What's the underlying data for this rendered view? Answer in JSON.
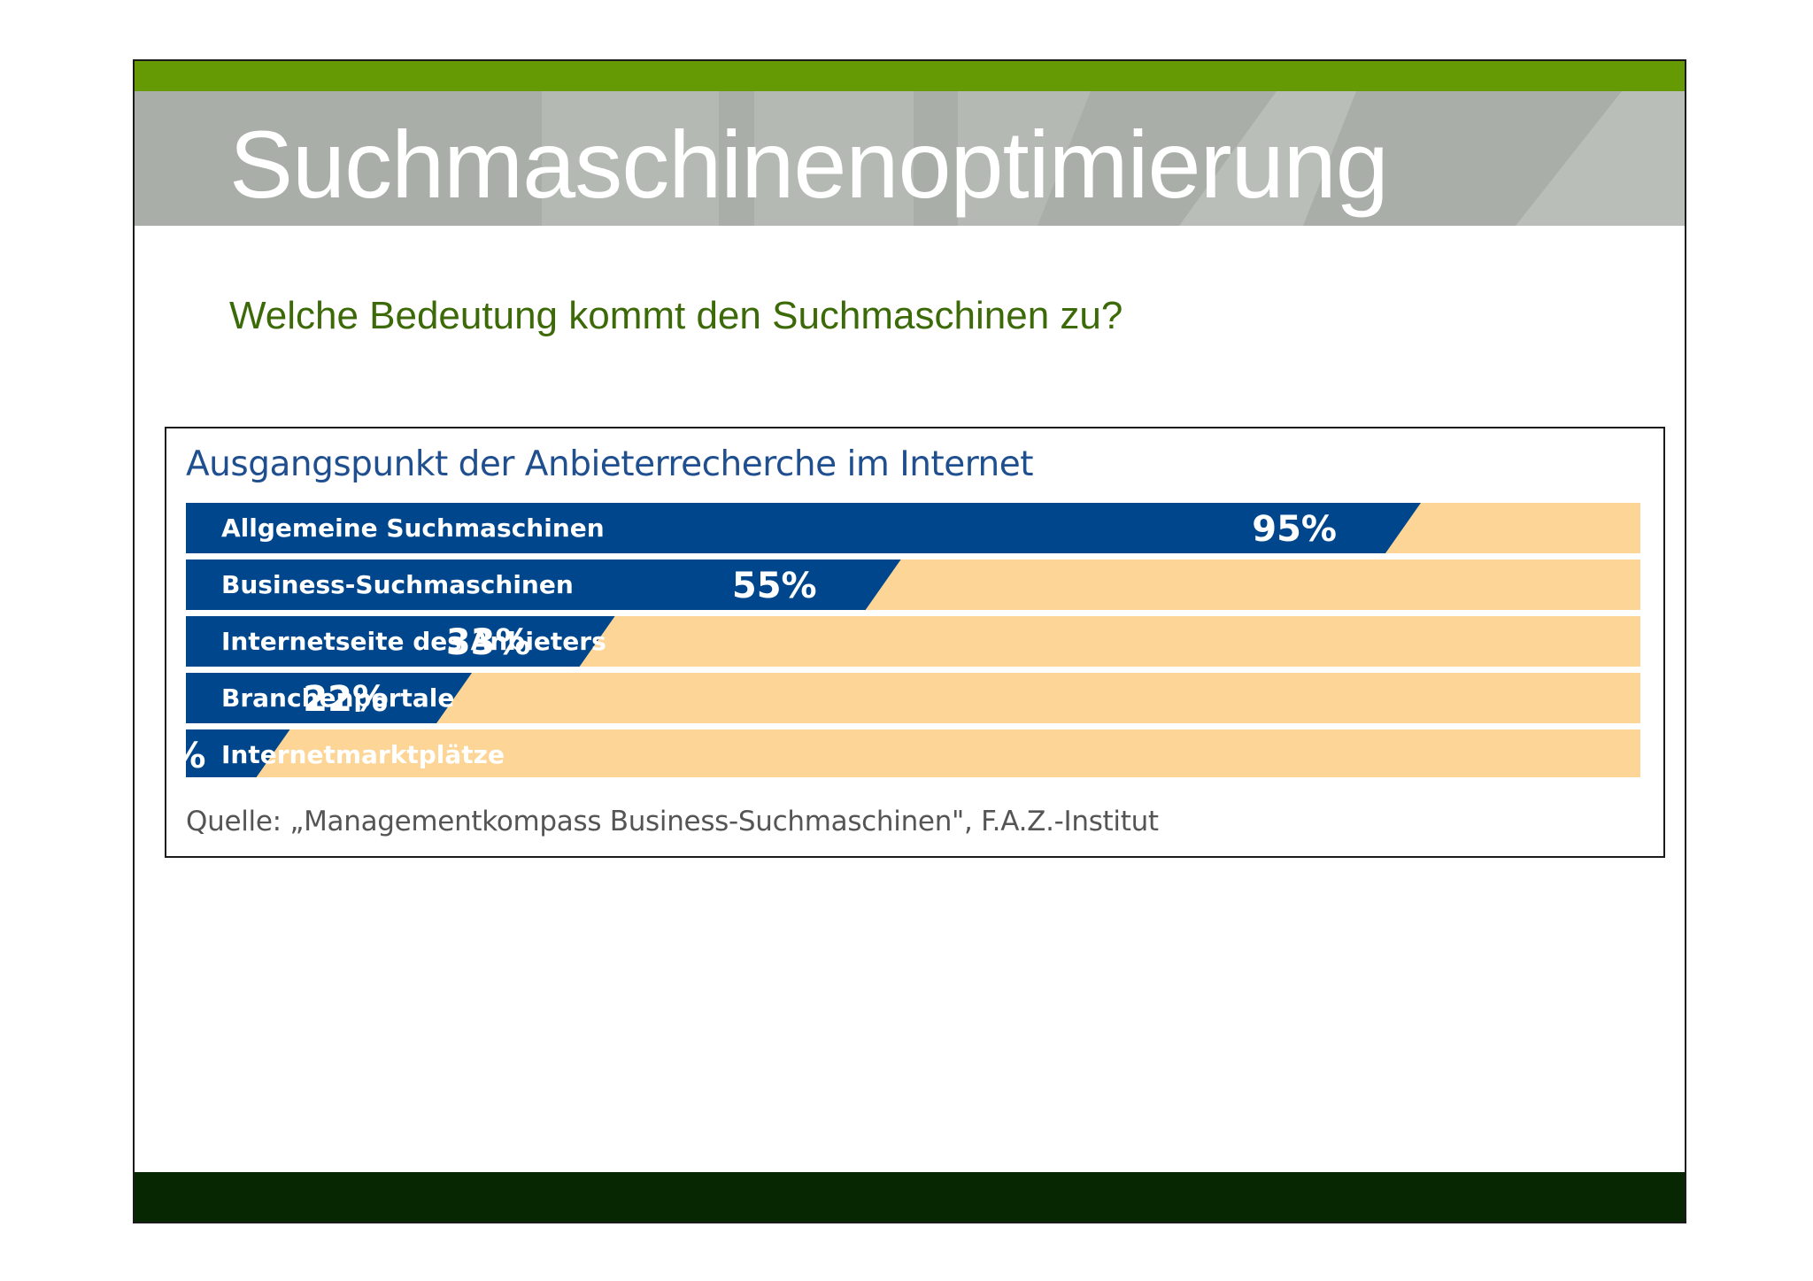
{
  "slide": {
    "title": "Suchmaschinenoptimierung",
    "subtitle": "Welche Bedeutung kommt den Suchmaschinen zu?"
  },
  "colors": {
    "header_green": "#669a04",
    "title_band": "#a9aea9",
    "footer": "#062701",
    "bar_fill": "#00468c",
    "bar_track": "#fdd597",
    "subtitle_text": "#3d6a08",
    "chart_title_text": "#1f4f8f"
  },
  "chart_data": {
    "type": "bar",
    "orientation": "horizontal",
    "title": "Ausgangspunkt der Anbieterrecherche im Internet",
    "categories": [
      "Allgemeine Suchmaschinen",
      "Business-Suchmaschinen",
      "Internetseite des Anbieters",
      "Branchenportale",
      "Internetmarktplätze"
    ],
    "values": [
      95,
      55,
      33,
      22,
      8
    ],
    "value_labels": [
      "95%",
      "55%",
      "33%",
      "22%",
      "8%"
    ],
    "xlim": [
      0,
      100
    ],
    "unit": "%",
    "grid": false,
    "source": "Quelle: „Managementkompass Business-Suchmaschinen\", F.A.Z.-Institut"
  }
}
